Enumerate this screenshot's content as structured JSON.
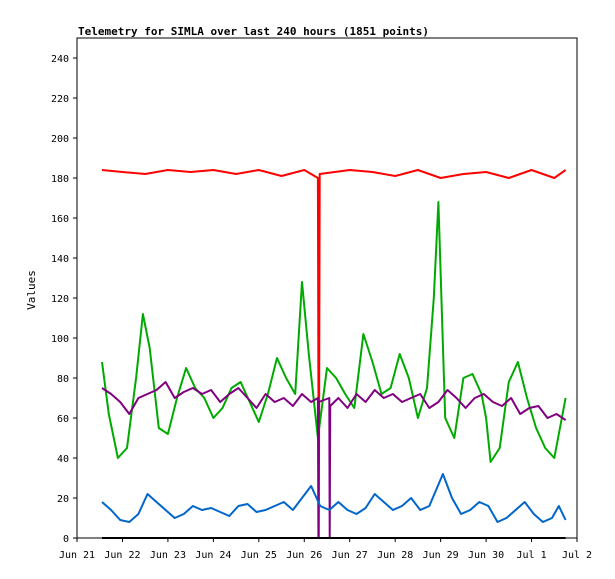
{
  "chart_data": {
    "type": "line",
    "title": "Telemetry for SIMLA over last 240 hours (1851 points)",
    "xlabel": "",
    "ylabel": "Values",
    "ylim": [
      0,
      250
    ],
    "y_ticks": [
      0,
      20,
      40,
      60,
      80,
      100,
      120,
      140,
      160,
      180,
      200,
      220,
      240
    ],
    "x_tick_labels": [
      "Jun 21",
      "Jun 22",
      "Jun 23",
      "Jun 24",
      "Jun 25",
      "Jun 26",
      "Jun 27",
      "Jun 28",
      "Jun 29",
      "Jun 30",
      "Jul 1",
      "Jul 2"
    ],
    "x_range_days": [
      0,
      11
    ],
    "grid": false,
    "series": [
      {
        "color": "#ff0000",
        "x": [
          0.55,
          1.0,
          1.5,
          2.0,
          2.5,
          3.0,
          3.5,
          4.0,
          4.5,
          5.0,
          5.3,
          5.32,
          5.34,
          6.0,
          6.5,
          7.0,
          7.5,
          8.0,
          8.5,
          9.0,
          9.5,
          10.0,
          10.5,
          10.75
        ],
        "y": [
          184,
          183,
          182,
          184,
          183,
          184,
          182,
          184,
          181,
          184,
          180,
          0,
          182,
          184,
          183,
          181,
          184,
          180,
          182,
          183,
          180,
          184,
          180,
          184
        ]
      },
      {
        "color": "#00aa00",
        "x": [
          0.55,
          0.7,
          0.9,
          1.1,
          1.3,
          1.45,
          1.6,
          1.8,
          2.0,
          2.2,
          2.4,
          2.6,
          2.8,
          3.0,
          3.2,
          3.4,
          3.6,
          3.8,
          4.0,
          4.2,
          4.4,
          4.6,
          4.8,
          4.95,
          5.1,
          5.3,
          5.5,
          5.7,
          5.9,
          6.1,
          6.3,
          6.5,
          6.7,
          6.9,
          7.1,
          7.3,
          7.5,
          7.7,
          7.85,
          7.95,
          8.1,
          8.3,
          8.5,
          8.7,
          8.9,
          9.0,
          9.1,
          9.3,
          9.5,
          9.7,
          9.9,
          10.1,
          10.3,
          10.5,
          10.75
        ],
        "y": [
          88,
          62,
          40,
          45,
          80,
          112,
          95,
          55,
          52,
          70,
          85,
          75,
          70,
          60,
          65,
          75,
          78,
          68,
          58,
          72,
          90,
          80,
          72,
          128,
          92,
          50,
          85,
          80,
          72,
          65,
          102,
          88,
          72,
          75,
          92,
          80,
          60,
          75,
          120,
          168,
          60,
          50,
          80,
          82,
          72,
          60,
          38,
          45,
          78,
          88,
          70,
          55,
          45,
          40,
          70
        ]
      },
      {
        "color": "#800080",
        "x": [
          0.55,
          0.75,
          0.95,
          1.15,
          1.35,
          1.55,
          1.75,
          1.95,
          2.15,
          2.35,
          2.55,
          2.75,
          2.95,
          3.15,
          3.35,
          3.55,
          3.75,
          3.95,
          4.15,
          4.35,
          4.55,
          4.75,
          4.95,
          5.15,
          5.3,
          5.31,
          5.32,
          5.55,
          5.56,
          5.57,
          5.75,
          5.95,
          6.15,
          6.35,
          6.55,
          6.75,
          6.95,
          7.15,
          7.35,
          7.55,
          7.75,
          7.95,
          8.15,
          8.35,
          8.55,
          8.75,
          8.95,
          9.15,
          9.35,
          9.55,
          9.75,
          9.95,
          10.15,
          10.35,
          10.55,
          10.75
        ],
        "y": [
          75,
          72,
          68,
          62,
          70,
          72,
          74,
          78,
          70,
          73,
          75,
          72,
          74,
          68,
          72,
          75,
          70,
          65,
          72,
          68,
          70,
          66,
          72,
          68,
          70,
          0,
          68,
          70,
          0,
          66,
          70,
          65,
          72,
          68,
          74,
          70,
          72,
          68,
          70,
          72,
          65,
          68,
          74,
          70,
          65,
          70,
          72,
          68,
          66,
          70,
          62,
          65,
          66,
          60,
          62,
          59
        ]
      },
      {
        "color": "#0066cc",
        "x": [
          0.55,
          0.75,
          0.95,
          1.15,
          1.35,
          1.55,
          1.75,
          1.95,
          2.15,
          2.35,
          2.55,
          2.75,
          2.95,
          3.15,
          3.35,
          3.55,
          3.75,
          3.95,
          4.15,
          4.35,
          4.55,
          4.75,
          4.95,
          5.15,
          5.35,
          5.55,
          5.75,
          5.95,
          6.15,
          6.35,
          6.55,
          6.75,
          6.95,
          7.15,
          7.35,
          7.55,
          7.75,
          7.9,
          8.05,
          8.25,
          8.45,
          8.65,
          8.85,
          9.05,
          9.25,
          9.45,
          9.65,
          9.85,
          10.05,
          10.25,
          10.45,
          10.6,
          10.75
        ],
        "y": [
          18,
          14,
          9,
          8,
          12,
          22,
          18,
          14,
          10,
          12,
          16,
          14,
          15,
          13,
          11,
          16,
          17,
          13,
          14,
          16,
          18,
          14,
          20,
          26,
          16,
          14,
          18,
          14,
          12,
          15,
          22,
          18,
          14,
          16,
          20,
          14,
          16,
          24,
          32,
          20,
          12,
          14,
          18,
          16,
          8,
          10,
          14,
          18,
          12,
          8,
          10,
          16,
          9
        ]
      },
      {
        "color": "#000000",
        "x": [
          0.55,
          10.75
        ],
        "y": [
          0,
          0
        ]
      }
    ]
  }
}
